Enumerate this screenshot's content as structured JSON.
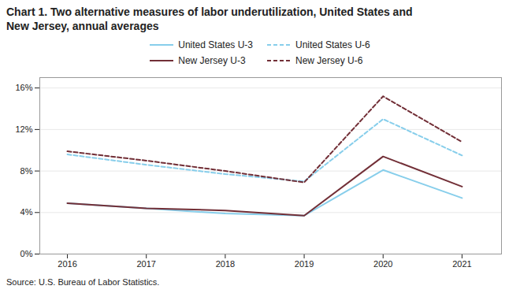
{
  "chart_data": {
    "type": "line",
    "title": "Chart 1. Two alternative measures of labor underutilization, United States and",
    "subtitle": "New Jersey, annual averages",
    "source": "Source: U.S. Bureau of Labor Statistics.",
    "x": [
      2016,
      2017,
      2018,
      2019,
      2020,
      2021
    ],
    "series": [
      {
        "name": "United States U-3",
        "color": "#87CEEB",
        "line_style": "solid",
        "values": [
          4.9,
          4.4,
          3.9,
          3.7,
          8.1,
          5.4
        ]
      },
      {
        "name": "United States U-6",
        "color": "#87CEEB",
        "line_style": "dashed",
        "values": [
          9.6,
          8.6,
          7.7,
          7.0,
          13.0,
          9.5
        ]
      },
      {
        "name": "New Jersey U-3",
        "color": "#722F37",
        "line_style": "solid",
        "values": [
          4.9,
          4.4,
          4.2,
          3.7,
          9.4,
          6.5
        ]
      },
      {
        "name": "New Jersey U-6",
        "color": "#722F37",
        "line_style": "dashed",
        "values": [
          9.9,
          9.0,
          8.0,
          6.9,
          15.2,
          10.8
        ]
      }
    ],
    "xlim": [
      2015.65,
      2021.5
    ],
    "xticks": [
      2016,
      2017,
      2018,
      2019,
      2020,
      2021
    ],
    "ylim": [
      0,
      17
    ],
    "yticks": [
      {
        "value": 0,
        "label": "0%"
      },
      {
        "value": 4,
        "label": "4%"
      },
      {
        "value": 8,
        "label": "8%"
      },
      {
        "value": 12,
        "label": "12%"
      },
      {
        "value": 16,
        "label": "16%"
      }
    ],
    "grid": true,
    "legend": "top"
  }
}
